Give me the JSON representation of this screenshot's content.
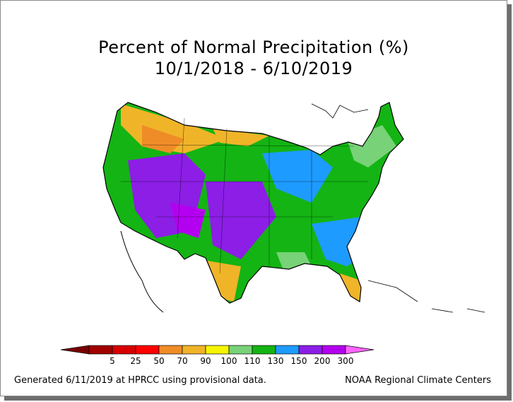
{
  "title": {
    "line1": "Percent of Normal Precipitation (%)",
    "line2": "10/1/2018 - 6/10/2019"
  },
  "legend": {
    "bins": [
      {
        "label": "5",
        "color": "#a00000"
      },
      {
        "label": "25",
        "color": "#d80000"
      },
      {
        "label": "50",
        "color": "#ff0000"
      },
      {
        "label": "70",
        "color": "#f08c28"
      },
      {
        "label": "90",
        "color": "#f0b428"
      },
      {
        "label": "100",
        "color": "#f5f500"
      },
      {
        "label": "110",
        "color": "#78d278"
      },
      {
        "label": "130",
        "color": "#14b414"
      },
      {
        "label": "150",
        "color": "#1e9bff"
      },
      {
        "label": "200",
        "color": "#8c1ee6"
      },
      {
        "label": "300",
        "color": "#b400f0"
      }
    ],
    "low_arrow_color": "#780000",
    "high_arrow_color": "#ff64ff"
  },
  "footer": {
    "left": "Generated 6/11/2019 at HPRCC using provisional data.",
    "right": "NOAA Regional Climate Centers"
  }
}
